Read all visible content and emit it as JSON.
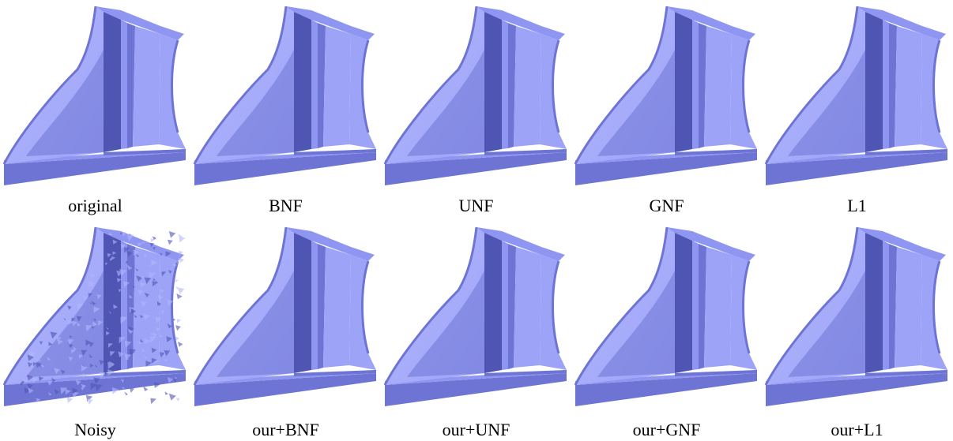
{
  "figure": {
    "rows": [
      {
        "panels": [
          {
            "caption": "original",
            "noisy": false
          },
          {
            "caption": "BNF",
            "noisy": false
          },
          {
            "caption": "UNF",
            "noisy": false
          },
          {
            "caption": "GNF",
            "noisy": false
          },
          {
            "caption": "L1",
            "noisy": false
          }
        ]
      },
      {
        "panels": [
          {
            "caption": "Noisy",
            "noisy": true
          },
          {
            "caption": "our+BNF",
            "noisy": false
          },
          {
            "caption": "our+UNF",
            "noisy": false
          },
          {
            "caption": "our+GNF",
            "noisy": false
          },
          {
            "caption": "our+L1",
            "noisy": false
          }
        ]
      }
    ],
    "colors": {
      "top_face": "#8f96f2",
      "side_face": "#6e74d4",
      "dark_face": "#4f55b3",
      "front_face": "#9da3f7",
      "highlight": "#b3b8ff"
    }
  }
}
